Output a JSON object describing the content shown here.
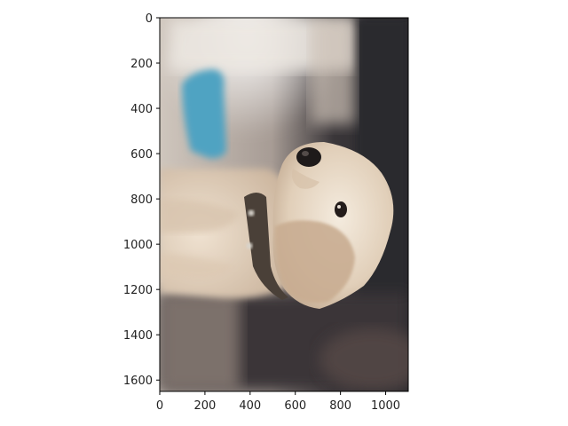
{
  "figure": {
    "image_description_icon": "puppy-photo",
    "colors": {
      "axis": "#000000",
      "dark_background": "#2e2c30",
      "fur_light": "#e9dccb",
      "fur_shadow": "#b49c86",
      "blue_toy": "#4fa3c2",
      "collar": "#4a4038"
    }
  },
  "chart_data": {
    "type": "image",
    "title": "",
    "xlabel": "",
    "ylabel": "",
    "xlim": [
      0,
      1100
    ],
    "ylim": [
      1650,
      0
    ],
    "xticks": [
      0,
      200,
      400,
      600,
      800,
      1000
    ],
    "yticks": [
      0,
      200,
      400,
      600,
      800,
      1000,
      1200,
      1400,
      1600
    ],
    "xtick_labels": [
      "0",
      "200",
      "400",
      "600",
      "800",
      "1000"
    ],
    "ytick_labels": [
      "0",
      "200",
      "400",
      "600",
      "800",
      "1000",
      "1200",
      "1400",
      "1600"
    ],
    "grid": false
  }
}
